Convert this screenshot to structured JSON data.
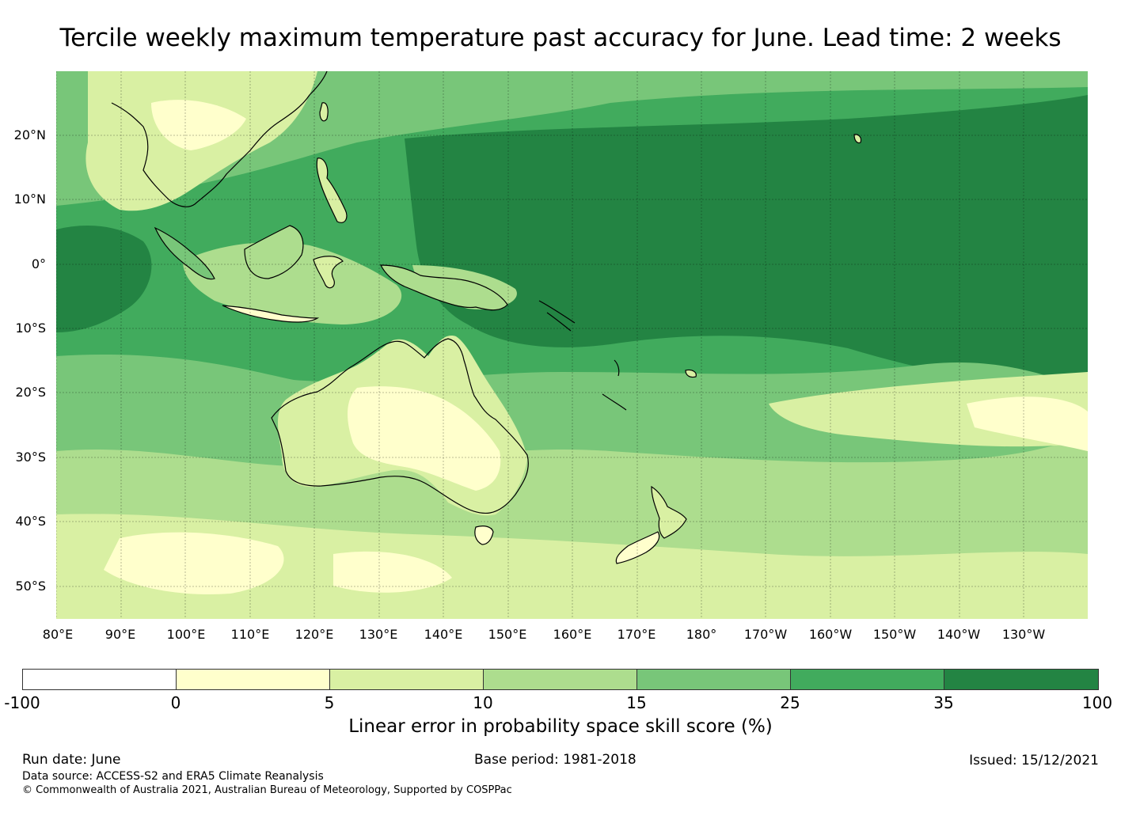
{
  "title": "Tercile weekly maximum temperature past accuracy for June. Lead time: 2 weeks",
  "map": {
    "lat_labels": [
      "20°N",
      "10°N",
      "0°",
      "10°S",
      "20°S",
      "30°S",
      "40°S",
      "50°S"
    ],
    "lon_labels": [
      "80°E",
      "90°E",
      "100°E",
      "110°E",
      "120°E",
      "130°E",
      "140°E",
      "150°E",
      "160°E",
      "170°E",
      "180°",
      "170°W",
      "160°W",
      "150°W",
      "140°W",
      "130°W"
    ],
    "extent_lon": [
      80,
      240
    ],
    "extent_lat": [
      -55,
      30
    ],
    "gridlines": true,
    "colors": {
      "neg": "#ffffff",
      "c0_5": "#ffffcc",
      "c5_10": "#d9f0a3",
      "c10_15": "#addd8e",
      "c15_25": "#78c679",
      "c25_35": "#41ab5d",
      "c35_100": "#238443",
      "land_outline": "#000000"
    }
  },
  "colorbar": {
    "ticks": [
      "-100",
      "0",
      "5",
      "10",
      "15",
      "25",
      "35",
      "100"
    ],
    "segment_colors": [
      "#ffffff",
      "#ffffcc",
      "#d9f0a3",
      "#addd8e",
      "#78c679",
      "#41ab5d",
      "#238443"
    ],
    "label": "Linear error in probability space skill score (%)"
  },
  "footer": {
    "run_date": "Run date: June",
    "base_period": "Base period: 1981-2018",
    "issued": "Issued: 15/12/2021",
    "data_source": "Data source: ACCESS-S2 and ERA5 Climate Reanalysis",
    "copyright": "© Commonwealth of Australia 2021, Australian Bureau of Meteorology, Supported by COSPPac"
  }
}
